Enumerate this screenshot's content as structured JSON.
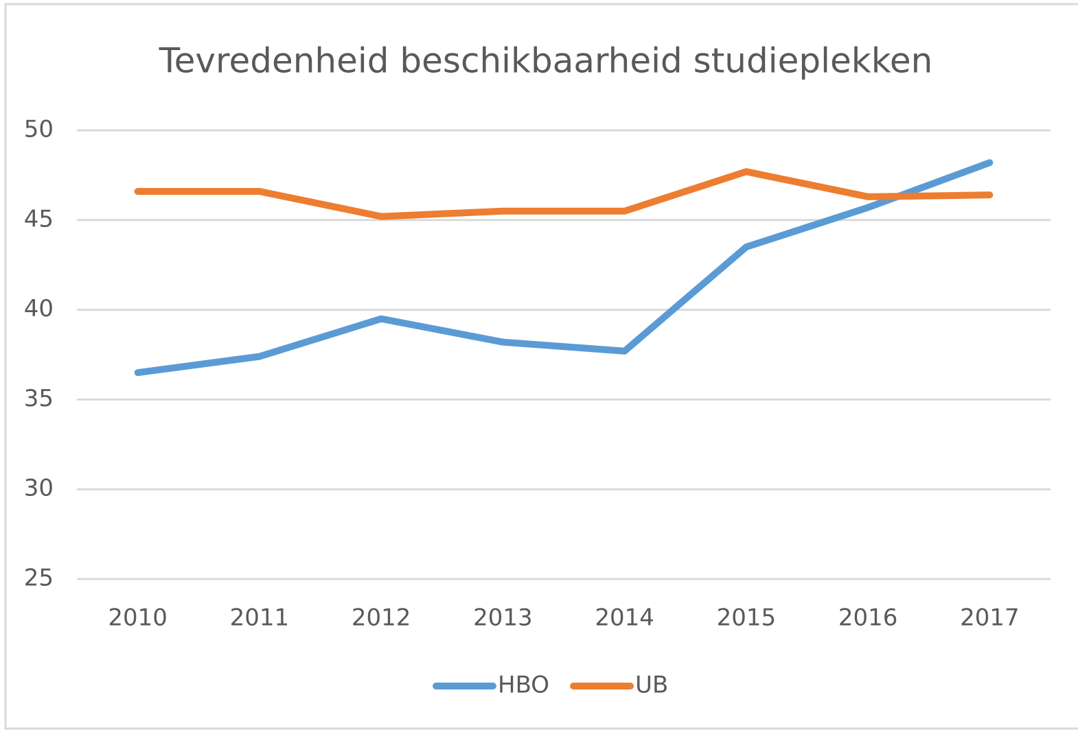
{
  "chart_data": {
    "type": "line",
    "title": "Tevredenheid beschikbaarheid studieplekken",
    "categories": [
      "2010",
      "2011",
      "2012",
      "2013",
      "2014",
      "2015",
      "2016",
      "2017"
    ],
    "series": [
      {
        "name": "HBO",
        "color": "#5b9bd5",
        "values": [
          36.5,
          37.4,
          39.5,
          38.2,
          37.7,
          43.5,
          45.7,
          48.2
        ]
      },
      {
        "name": "UB",
        "color": "#ed7d31",
        "values": [
          46.6,
          46.6,
          45.2,
          45.5,
          45.5,
          47.7,
          46.3,
          46.4
        ]
      }
    ],
    "ylim": [
      25,
      50
    ],
    "yticks": [
      25,
      30,
      35,
      40,
      45,
      50
    ],
    "grid": true,
    "legend": "bottom"
  }
}
